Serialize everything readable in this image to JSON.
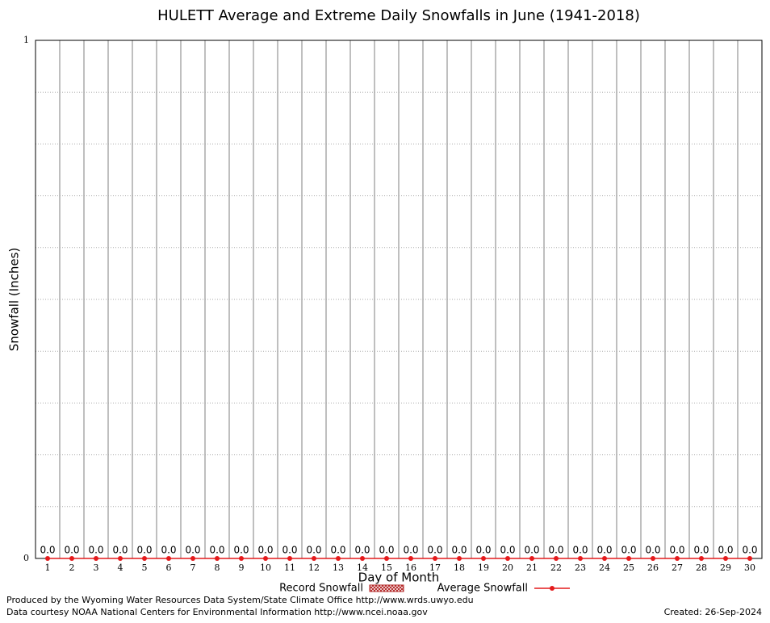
{
  "chart_data": {
    "type": "bar-line",
    "title": "HULETT Average and Extreme Daily Snowfalls in June (1941-2018)",
    "x_label": "Day of Month",
    "y_label": "Snowfall (Inches)",
    "categories": [
      1,
      2,
      3,
      4,
      5,
      6,
      7,
      8,
      9,
      10,
      11,
      12,
      13,
      14,
      15,
      16,
      17,
      18,
      19,
      20,
      21,
      22,
      23,
      24,
      25,
      26,
      27,
      28,
      29,
      30
    ],
    "series": [
      {
        "name": "Record Snowfall",
        "kind": "bar",
        "color": "#b22222",
        "values": [
          0,
          0,
          0,
          0,
          0,
          0,
          0,
          0,
          0,
          0,
          0,
          0,
          0,
          0,
          0,
          0,
          0,
          0,
          0,
          0,
          0,
          0,
          0,
          0,
          0,
          0,
          0,
          0,
          0,
          0
        ],
        "value_labels": [
          "0.0",
          "0.0",
          "0.0",
          "0.0",
          "0.0",
          "0.0",
          "0.0",
          "0.0",
          "0.0",
          "0.0",
          "0.0",
          "0.0",
          "0.0",
          "0.0",
          "0.0",
          "0.0",
          "0.0",
          "0.0",
          "0.0",
          "0.0",
          "0.0",
          "0.0",
          "0.0",
          "0.0",
          "0.0",
          "0.0",
          "0.0",
          "0.0",
          "0.0",
          "0.0"
        ]
      },
      {
        "name": "Average Snowfall",
        "kind": "line",
        "color": "#e41a1c",
        "values": [
          0,
          0,
          0,
          0,
          0,
          0,
          0,
          0,
          0,
          0,
          0,
          0,
          0,
          0,
          0,
          0,
          0,
          0,
          0,
          0,
          0,
          0,
          0,
          0,
          0,
          0,
          0,
          0,
          0,
          0
        ]
      }
    ],
    "ylim": [
      0,
      1
    ],
    "yticks": [
      0,
      1
    ],
    "minor_grid": [
      0.1,
      0.2,
      0.3,
      0.4,
      0.5,
      0.6,
      0.7,
      0.8,
      0.9
    ],
    "credits": [
      "Produced by the Wyoming Water Resources Data System/State Climate Office http://www.wrds.uwyo.edu",
      "Data courtesy NOAA National Centers for Environmental Information http://www.ncei.noaa.gov"
    ],
    "created": "Created:  26-Sep-2024"
  }
}
